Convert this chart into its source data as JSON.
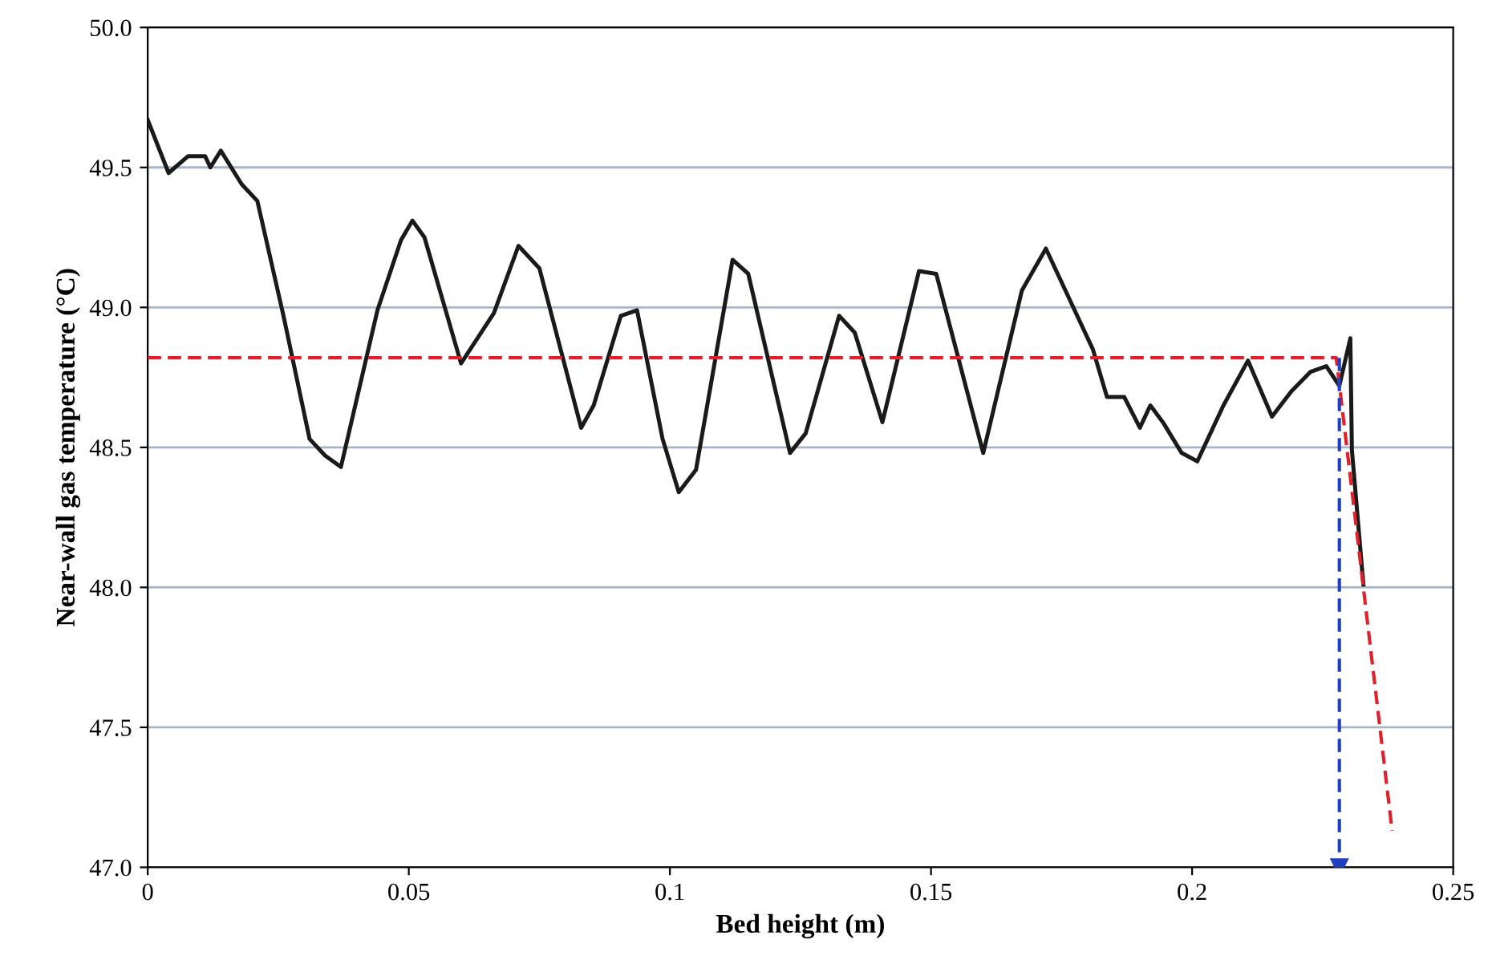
{
  "chart_data": {
    "type": "line",
    "xlabel": "Bed height (m)",
    "ylabel": "Near-wall gas temperature (°C)",
    "xlim": [
      0,
      0.25
    ],
    "xticks": [
      0,
      0.05,
      0.1,
      0.15,
      0.2,
      0.25
    ],
    "ylim": [
      47.0,
      50.0
    ],
    "yticks": [
      {
        "value": 47.0,
        "label": "47.0"
      },
      {
        "value": 47.5,
        "label": "47.5"
      },
      {
        "value": 48.0,
        "label": "48.0"
      },
      {
        "value": 48.5,
        "label": "48.5"
      },
      {
        "value": 49.0,
        "label": "49.0"
      },
      {
        "value": 49.5,
        "label": "49.5"
      },
      {
        "value": 50.0,
        "label": "50.0"
      }
    ],
    "grid": "y",
    "series": [
      {
        "color": "#1a1a1a",
        "line_style": "solid",
        "x": [
          0,
          0.004,
          0.0077,
          0.011,
          0.012,
          0.014,
          0.018,
          0.021,
          0.026,
          0.031,
          0.034,
          0.037,
          0.044,
          0.0485,
          0.0507,
          0.053,
          0.06,
          0.0663,
          0.071,
          0.075,
          0.083,
          0.0854,
          0.0906,
          0.0937,
          0.0986,
          0.1017,
          0.105,
          0.112,
          0.115,
          0.123,
          0.126,
          0.1324,
          0.1354,
          0.1407,
          0.1477,
          0.151,
          0.16,
          0.1674,
          0.172,
          0.1775,
          0.181,
          0.1837,
          0.187,
          0.19,
          0.192,
          0.1944,
          0.198,
          0.201,
          0.206,
          0.2107,
          0.2153,
          0.219,
          0.2227,
          0.2257,
          0.2282,
          0.2303,
          0.2306,
          0.2328
        ],
        "values": [
          49.67,
          49.48,
          49.54,
          49.54,
          49.5,
          49.56,
          49.44,
          49.38,
          48.97,
          48.53,
          48.47,
          48.43,
          48.99,
          49.24,
          49.31,
          49.25,
          48.8,
          48.98,
          49.22,
          49.14,
          48.57,
          48.65,
          48.97,
          48.99,
          48.53,
          48.34,
          48.42,
          49.17,
          49.12,
          48.48,
          48.55,
          48.97,
          48.91,
          48.59,
          49.13,
          49.12,
          48.48,
          49.06,
          49.21,
          48.99,
          48.85,
          48.68,
          48.68,
          48.57,
          48.65,
          48.59,
          48.48,
          48.45,
          48.65,
          48.81,
          48.61,
          48.7,
          48.77,
          48.79,
          48.72,
          48.89,
          48.49,
          48.01
        ]
      },
      {
        "color": "#e0202a",
        "line_style": "dashed",
        "x": [
          0,
          0.2276,
          0.2383
        ],
        "values": [
          48.82,
          48.82,
          47.13
        ]
      },
      {
        "color": "#2040c0",
        "line_style": "dashed",
        "marker": "triangle",
        "x": [
          0.2282,
          0.2282
        ],
        "values": [
          48.82,
          47.0
        ]
      }
    ]
  }
}
